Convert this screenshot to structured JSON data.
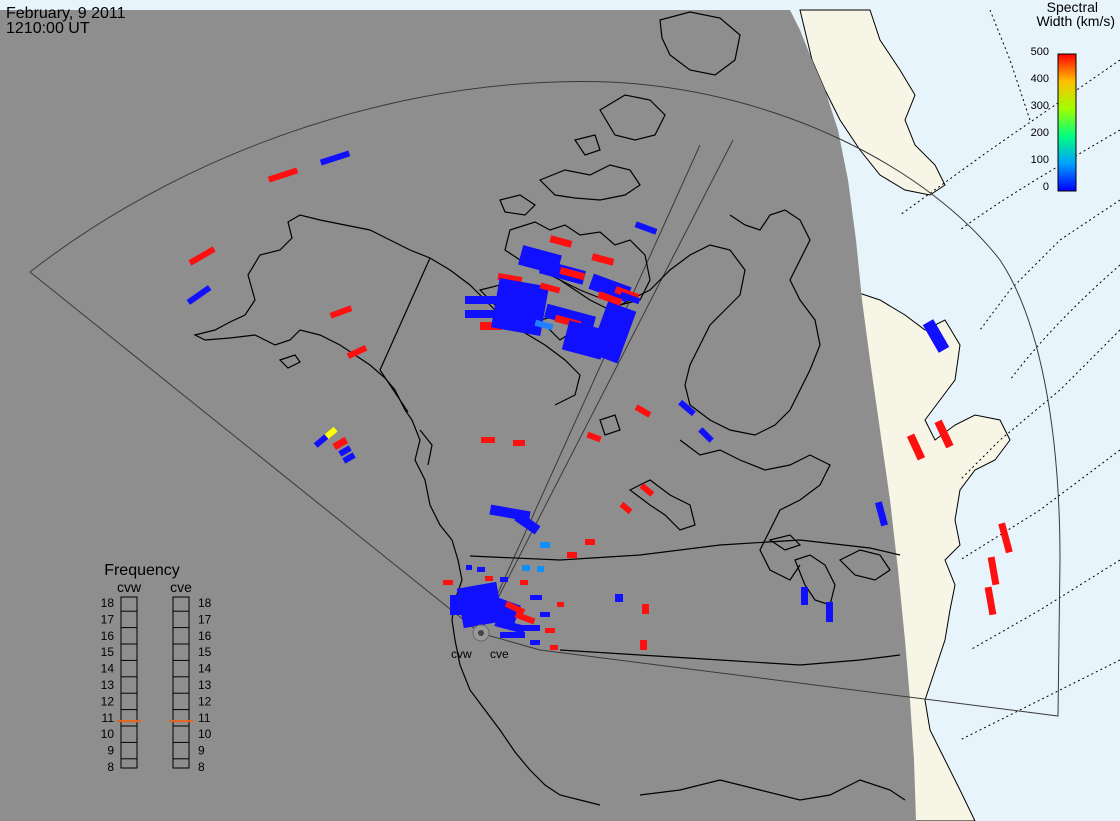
{
  "header": {
    "date": "February, 9 2011",
    "time": "1210:00 UT"
  },
  "colorbar": {
    "title_line1": "Spectral",
    "title_line2": "Width (km/s)",
    "ticks": [
      "500",
      "400",
      "300",
      "200",
      "100",
      "0"
    ],
    "scale": [
      0,
      500
    ]
  },
  "frequency_panel": {
    "title": "Frequency",
    "radars": [
      "cvw",
      "cve"
    ],
    "ticks": [
      "18",
      "17",
      "16",
      "15",
      "14",
      "13",
      "12",
      "11",
      "10",
      "9",
      "8"
    ],
    "cvw_value_mhz": 10.8,
    "cve_value_mhz": 10.8,
    "marker_color": "#e8641e"
  },
  "radar_labels": [
    "cvw",
    "cve"
  ],
  "colors": {
    "night": "#8e8e8e",
    "day_land": "#f7f5e6",
    "day_ocean": "#e8f4fb",
    "coast": "#000000"
  }
}
